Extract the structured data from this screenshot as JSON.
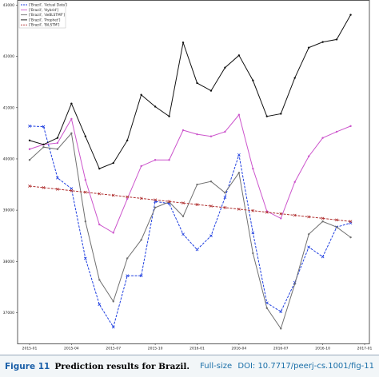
{
  "chart_data": {
    "type": "line",
    "x": [
      "2015-01",
      "2015-02",
      "2015-03",
      "2015-04",
      "2015-05",
      "2015-06",
      "2015-07",
      "2015-08",
      "2015-09",
      "2015-10",
      "2015-11",
      "2015-12",
      "2016-01",
      "2016-02",
      "2016-03",
      "2016-04",
      "2016-05",
      "2016-06",
      "2016-07",
      "2016-08",
      "2016-09",
      "2016-10",
      "2016-11",
      "2016-12"
    ],
    "xlim": [
      "2015-01",
      "2017-01"
    ],
    "xticks": [
      "2015-01",
      "2015-04",
      "2015-07",
      "2015-10",
      "2016-01",
      "2016-04",
      "2016-07",
      "2016-10",
      "2017-01"
    ],
    "ylim": [
      36400,
      43100
    ],
    "yticks": [
      37000,
      38000,
      39000,
      40000,
      41000,
      42000,
      43000
    ],
    "legend": "upper left",
    "series": [
      {
        "name": "['Brazil', 'Actual Data']",
        "color": "#1f3fe0",
        "dashed": true,
        "marker": "x",
        "values": [
          40640,
          40630,
          39630,
          39420,
          38060,
          37160,
          36720,
          37720,
          37720,
          39170,
          39130,
          38530,
          38230,
          38500,
          39250,
          40080,
          38560,
          37190,
          37020,
          37590,
          38280,
          38090,
          38670,
          38750
        ]
      },
      {
        "name": "['Brazil', 'Hybrid']",
        "color": "#cc55cc",
        "dashed": false,
        "marker": "o",
        "values": [
          40190,
          40280,
          40310,
          40780,
          39590,
          38720,
          38560,
          39220,
          39860,
          39980,
          39980,
          40560,
          40480,
          40440,
          40530,
          40860,
          39810,
          38980,
          38840,
          39550,
          40050,
          40410,
          40530,
          40640
        ]
      },
      {
        "name": "['Brazil', 'deBLSTMF']",
        "color": "#707070",
        "dashed": false,
        "marker": "o",
        "values": [
          39980,
          40230,
          40190,
          40500,
          38780,
          37640,
          37220,
          38060,
          38420,
          39050,
          39160,
          38880,
          39500,
          39560,
          39340,
          39730,
          38160,
          37090,
          36690,
          37560,
          38530,
          38780,
          38670,
          38470
        ]
      },
      {
        "name": "['Brazil', 'Prophet']",
        "color": "#111111",
        "dashed": false,
        "marker": "o",
        "values": [
          40360,
          40280,
          40410,
          41080,
          40440,
          39810,
          39920,
          40360,
          41250,
          41020,
          40830,
          42270,
          41480,
          41330,
          41780,
          42020,
          41530,
          40830,
          40880,
          41580,
          42170,
          42280,
          42330,
          42810
        ]
      },
      {
        "name": "['Brazil', 'BiLSTM']",
        "color": "#b03030",
        "dashed": true,
        "marker": "x",
        "values": [
          39470,
          39440,
          39410,
          39380,
          39350,
          39320,
          39290,
          39260,
          39230,
          39200,
          39170,
          39140,
          39110,
          39080,
          39050,
          39020,
          38990,
          38960,
          38930,
          38900,
          38870,
          38840,
          38810,
          38780
        ]
      }
    ]
  },
  "caption": {
    "label": "Figure 11",
    "text": "Prediction results for Brazil.",
    "full_size": "Full-size",
    "doi": "DOI: 10.7717/peerj-cs.1001/fig-11"
  }
}
